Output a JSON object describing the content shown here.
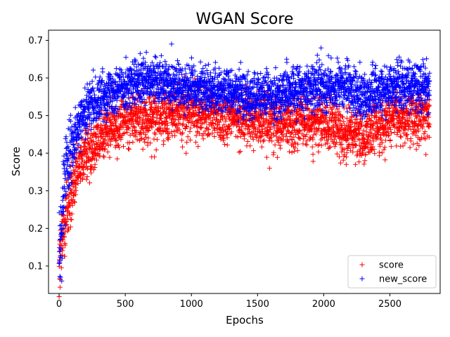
{
  "chart_data": {
    "type": "scatter",
    "title": "WGAN Score",
    "xlabel": "Epochs",
    "ylabel": "Score",
    "xlim": [
      -80,
      2880
    ],
    "ylim": [
      0.027,
      0.727
    ],
    "xticks": [
      0,
      500,
      1000,
      1500,
      2000,
      2500
    ],
    "yticks": [
      0.1,
      0.2,
      0.3,
      0.4,
      0.5,
      0.6,
      0.7
    ],
    "xtick_labels": [
      "0",
      "500",
      "1000",
      "1500",
      "2000",
      "2500"
    ],
    "ytick_labels": [
      "0.1",
      "0.2",
      "0.3",
      "0.4",
      "0.5",
      "0.6",
      "0.7"
    ],
    "grid": false,
    "legend_position": "bottom-right",
    "marker": "+",
    "x_range": [
      0,
      2800
    ],
    "points_per_series": 2800,
    "series": [
      {
        "name": "score",
        "color": "#ff0000",
        "trend_x": [
          0,
          50,
          100,
          150,
          200,
          300,
          400,
          500,
          700,
          1000,
          1500,
          2000,
          2200,
          2300,
          2500,
          2800
        ],
        "trend_y": [
          0.09,
          0.24,
          0.3,
          0.36,
          0.4,
          0.44,
          0.47,
          0.49,
          0.5,
          0.51,
          0.49,
          0.48,
          0.45,
          0.45,
          0.49,
          0.5
        ],
        "spread": 0.035,
        "outliers": [
          [
            700,
            0.39
          ],
          [
            720,
            0.39
          ],
          [
            960,
            0.4
          ],
          [
            1590,
            0.36
          ],
          [
            2700,
            0.41
          ],
          [
            2720,
            0.42
          ],
          [
            2170,
            0.37
          ],
          [
            2240,
            0.37
          ]
        ]
      },
      {
        "name": "new_score",
        "color": "#0000ff",
        "trend_x": [
          0,
          50,
          100,
          150,
          200,
          300,
          400,
          500,
          700,
          1000,
          1500,
          2000,
          2200,
          2300,
          2500,
          2800
        ],
        "trend_y": [
          0.11,
          0.37,
          0.43,
          0.48,
          0.51,
          0.55,
          0.57,
          0.58,
          0.59,
          0.58,
          0.55,
          0.58,
          0.57,
          0.55,
          0.58,
          0.58
        ],
        "spread": 0.03,
        "outliers": [
          [
            850,
            0.69
          ],
          [
            1980,
            0.68
          ],
          [
            1720,
            0.65
          ],
          [
            20,
            0.06
          ],
          [
            10,
            0.07
          ]
        ]
      }
    ]
  }
}
